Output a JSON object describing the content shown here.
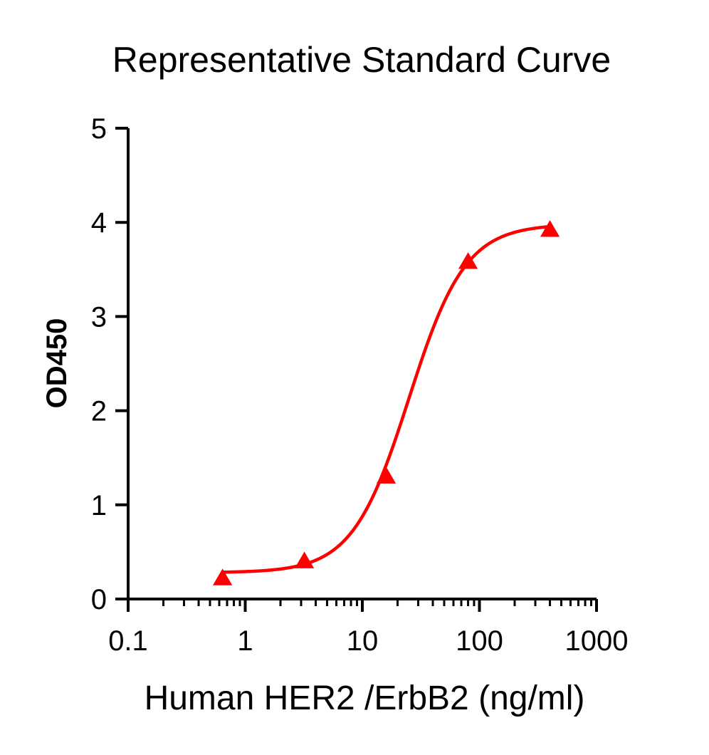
{
  "chart_data": {
    "type": "scatter",
    "title": "Representative Standard Curve",
    "xlabel": "Human HER2 /ErbB2 (ng/ml)",
    "ylabel": "OD450",
    "x_scale": "log",
    "xlim": [
      0.1,
      1000
    ],
    "ylim": [
      0,
      5
    ],
    "x_ticks": [
      "0.1",
      "1",
      "10",
      "100",
      "1000"
    ],
    "y_ticks": [
      "0",
      "1",
      "2",
      "3",
      "4",
      "5"
    ],
    "grid": false,
    "legend": "none",
    "series": [
      {
        "marker": "triangle",
        "color": "#ff0000",
        "fit": "4PL",
        "points": [
          {
            "x": 0.64,
            "y": 0.22
          },
          {
            "x": 3.2,
            "y": 0.4
          },
          {
            "x": 16,
            "y": 1.3
          },
          {
            "x": 80,
            "y": 3.58
          },
          {
            "x": 400,
            "y": 3.92
          }
        ],
        "curve_params": {
          "bottom": 0.28,
          "top": 3.98,
          "ec50": 25,
          "hill": 1.8
        }
      }
    ]
  }
}
